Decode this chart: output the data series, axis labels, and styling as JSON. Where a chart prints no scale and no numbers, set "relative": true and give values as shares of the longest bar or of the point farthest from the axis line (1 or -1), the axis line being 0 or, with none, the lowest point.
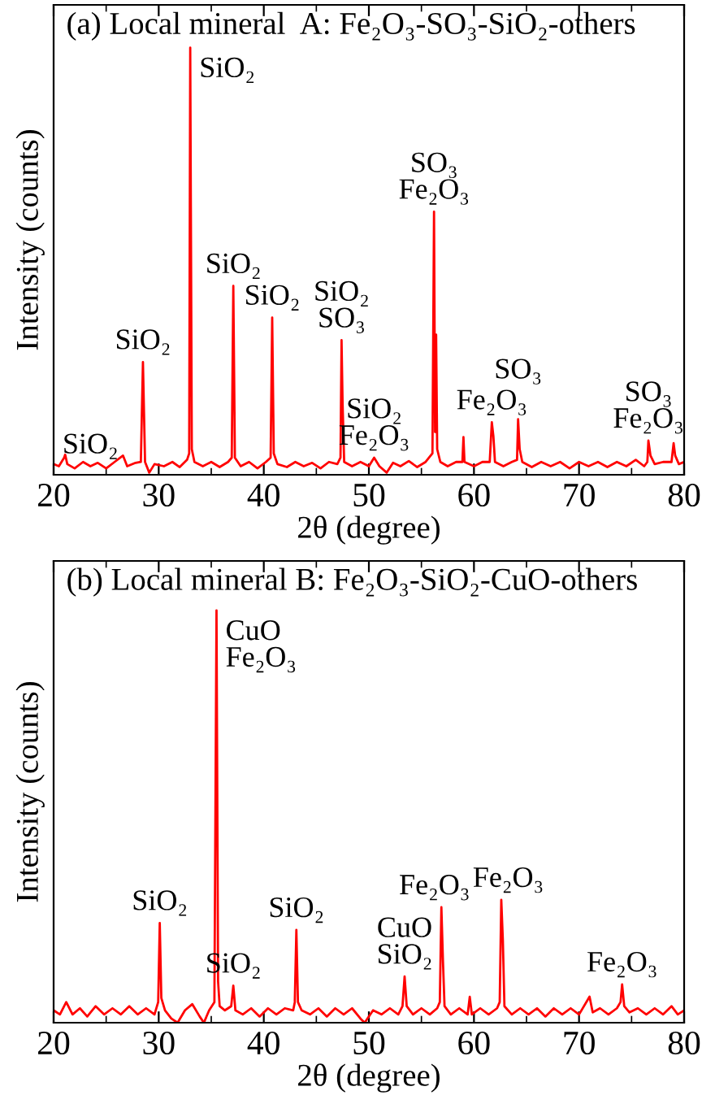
{
  "chart_data": [
    {
      "type": "line",
      "title": "(a) Local mineral  A: Fe₂O₃-SO₃-SiO₂-others",
      "xlabel": "2θ (degree)",
      "ylabel": "Intensity (counts)",
      "relative": true,
      "xlim": [
        20,
        80
      ],
      "xticks": [
        20,
        30,
        40,
        50,
        60,
        70,
        80
      ],
      "grid": false,
      "legend": false,
      "marker": "none",
      "line_style": "solid",
      "series": [
        {
          "color": "#ff0000",
          "x": [
            20.0,
            20.5,
            21.0,
            21.1,
            21.3,
            22,
            22.8,
            23.5,
            24.2,
            25,
            25.8,
            26.6,
            27,
            27.8,
            28.3,
            28.5,
            28.7,
            29.1,
            29.6,
            30.5,
            31.3,
            32,
            32.7,
            32.9,
            33.0,
            33.15,
            33.4,
            34.2,
            35,
            35.8,
            36.6,
            36.95,
            37.1,
            37.25,
            37.8,
            38.6,
            39.4,
            40.2,
            40.65,
            40.8,
            40.95,
            41.3,
            42.2,
            43,
            43.8,
            44.6,
            45.4,
            46.2,
            47,
            47.3,
            47.4,
            47.5,
            47.65,
            48.4,
            49.2,
            50,
            50.5,
            51,
            51.7,
            52.3,
            53,
            53.8,
            54.6,
            55.4,
            56.05,
            56.2,
            56.3,
            56.4,
            56.5,
            56.8,
            57.5,
            58.3,
            58.9,
            59.0,
            59.1,
            60,
            60.8,
            61.5,
            61.7,
            61.85,
            62,
            62.8,
            63.6,
            64.1,
            64.2,
            64.35,
            64.6,
            65.5,
            66.4,
            67.3,
            68.2,
            69.1,
            70,
            70.9,
            71.8,
            72.7,
            73.6,
            74.5,
            75.4,
            76.2,
            76.5,
            76.6,
            76.8,
            77.2,
            78,
            78.8,
            79.0,
            79.15,
            79.5,
            80
          ],
          "values": [
            0.025,
            0.02,
            0.04,
            0.047,
            0.025,
            0.015,
            0.03,
            0.02,
            0.028,
            0.015,
            0.03,
            0.045,
            0.02,
            0.028,
            0.03,
            0.264,
            0.03,
            0.005,
            0.025,
            0.02,
            0.03,
            0.018,
            0.035,
            0.05,
            1,
            0.06,
            0.03,
            0.02,
            0.03,
            0.018,
            0.03,
            0.04,
            0.442,
            0.04,
            0.02,
            0.03,
            0.015,
            0.03,
            0.04,
            0.368,
            0.05,
            0.025,
            0.018,
            0.03,
            0.02,
            0.028,
            0.015,
            0.03,
            0.025,
            0.04,
            0.315,
            0.165,
            0.03,
            0.02,
            0.03,
            0.02,
            0.04,
            0.02,
            0.005,
            0.028,
            0.02,
            0.032,
            0.018,
            0.03,
            0.05,
            0.616,
            0.1,
            0.328,
            0.06,
            0.03,
            0.02,
            0.03,
            0.03,
            0.088,
            0.03,
            0.02,
            0.03,
            0.03,
            0.123,
            0.09,
            0.03,
            0.02,
            0.03,
            0.035,
            0.13,
            0.06,
            0.03,
            0.018,
            0.03,
            0.02,
            0.03,
            0.015,
            0.03,
            0.02,
            0.03,
            0.018,
            0.03,
            0.02,
            0.035,
            0.02,
            0.03,
            0.08,
            0.045,
            0.025,
            0.03,
            0.03,
            0.074,
            0.045,
            0.025,
            0.03
          ]
        }
      ],
      "annotations": [
        {
          "text": "SiO₂",
          "x": 23.5,
          "y": 0.02
        },
        {
          "text": "SiO₂",
          "x": 28.5,
          "y": 0.264
        },
        {
          "text": "SiO₂",
          "x": 33.0,
          "y": 1
        },
        {
          "text": "SiO₂",
          "x": 37.1,
          "y": 0.442
        },
        {
          "text": "SiO₂",
          "x": 40.8,
          "y": 0.368
        },
        {
          "text": "SiO₂\nSO₃",
          "x": 47.4,
          "y": 0.315
        },
        {
          "text": "SiO₂\nFe₂O₃",
          "x": 50.5,
          "y": 0.04
        },
        {
          "text": "SO₃\nFe₂O₃",
          "x": 56.2,
          "y": 0.616
        },
        {
          "text": "Fe₂O₃",
          "x": 61.7,
          "y": 0.123
        },
        {
          "text": "SO₃",
          "x": 64.2,
          "y": 0.13
        },
        {
          "text": "SO₃\nFe₂O₃",
          "x": 76.6,
          "y": 0.08
        }
      ]
    },
    {
      "type": "line",
      "title": "(b) Local mineral B: Fe₂O₃-SiO₂-CuO-others",
      "xlabel": "2θ (degree)",
      "ylabel": "Intensity (counts)",
      "relative": true,
      "xlim": [
        20,
        80
      ],
      "xticks": [
        20,
        30,
        40,
        50,
        60,
        70,
        80
      ],
      "grid": false,
      "legend": false,
      "marker": "none",
      "line_style": "solid",
      "series": [
        {
          "color": "#ff0000",
          "x": [
            20,
            20.6,
            21.2,
            21.8,
            22.5,
            23.2,
            24,
            24.8,
            25.6,
            26.4,
            27.2,
            28,
            28.8,
            29.6,
            29.95,
            30.1,
            30.25,
            30.6,
            31.2,
            31.8,
            32.5,
            33.2,
            33.9,
            34.3,
            34.8,
            35.3,
            35.5,
            35.65,
            35.8,
            36.3,
            36.9,
            37.1,
            37.3,
            38,
            38.8,
            39.6,
            40.4,
            41.2,
            42,
            42.8,
            42.95,
            43.1,
            43.25,
            43.6,
            44.4,
            45.2,
            46,
            46.8,
            47.6,
            48.4,
            49.2,
            49.6,
            50.4,
            51.2,
            52,
            52.8,
            53.2,
            53.4,
            53.6,
            54.2,
            55,
            55.8,
            56.5,
            56.75,
            56.9,
            57.05,
            57.2,
            57.8,
            58.6,
            59.4,
            59.6,
            59.8,
            60.6,
            61.4,
            62.2,
            62.45,
            62.6,
            62.75,
            62.9,
            63.6,
            64.4,
            65.2,
            66,
            66.8,
            67.6,
            68.4,
            69.2,
            70,
            71,
            71.3,
            72,
            72.8,
            73.6,
            73.95,
            74.1,
            74.3,
            74.8,
            75.6,
            76.4,
            77.2,
            78,
            78.8,
            79.4,
            80
          ],
          "values": [
            0.03,
            0.02,
            0.05,
            0.02,
            0.035,
            0.015,
            0.04,
            0.02,
            0.035,
            0.02,
            0.04,
            0.02,
            0.035,
            0.02,
            0.05,
            0.242,
            0.06,
            0.03,
            0.01,
            0.0,
            0.03,
            0.045,
            0.015,
            0.0,
            0.03,
            0.05,
            1,
            0.1,
            0.04,
            0.03,
            0.04,
            0.09,
            0.03,
            0.02,
            0.035,
            0.015,
            0.035,
            0.02,
            0.035,
            0.03,
            0.05,
            0.225,
            0.05,
            0.03,
            0.02,
            0.035,
            0.015,
            0.035,
            0.02,
            0.035,
            0.01,
            0.0,
            0.03,
            0.02,
            0.035,
            0.02,
            0.04,
            0.112,
            0.04,
            0.02,
            0.035,
            0.02,
            0.035,
            0.05,
            0.28,
            0.15,
            0.04,
            0.02,
            0.035,
            0.02,
            0.063,
            0.02,
            0.035,
            0.02,
            0.035,
            0.05,
            0.298,
            0.2,
            0.04,
            0.02,
            0.035,
            0.02,
            0.035,
            0.015,
            0.035,
            0.02,
            0.035,
            0.02,
            0.063,
            0.025,
            0.035,
            0.02,
            0.035,
            0.05,
            0.093,
            0.04,
            0.025,
            0.035,
            0.02,
            0.035,
            0.02,
            0.04,
            0.02,
            0.03
          ]
        }
      ],
      "annotations": [
        {
          "text": "CuO\nFe₂O₃",
          "x": 35.5,
          "y": 1
        },
        {
          "text": "SiO₂",
          "x": 30.1,
          "y": 0.242
        },
        {
          "text": "SiO₂",
          "x": 37.1,
          "y": 0.09
        },
        {
          "text": "SiO₂",
          "x": 43.1,
          "y": 0.225
        },
        {
          "text": "CuO\nSiO₂",
          "x": 53.4,
          "y": 0.112
        },
        {
          "text": "Fe₂O₃",
          "x": 56.9,
          "y": 0.28
        },
        {
          "text": "Fe₂O₃",
          "x": 62.6,
          "y": 0.298
        },
        {
          "text": "Fe₂O₃",
          "x": 74.1,
          "y": 0.093
        }
      ]
    }
  ]
}
